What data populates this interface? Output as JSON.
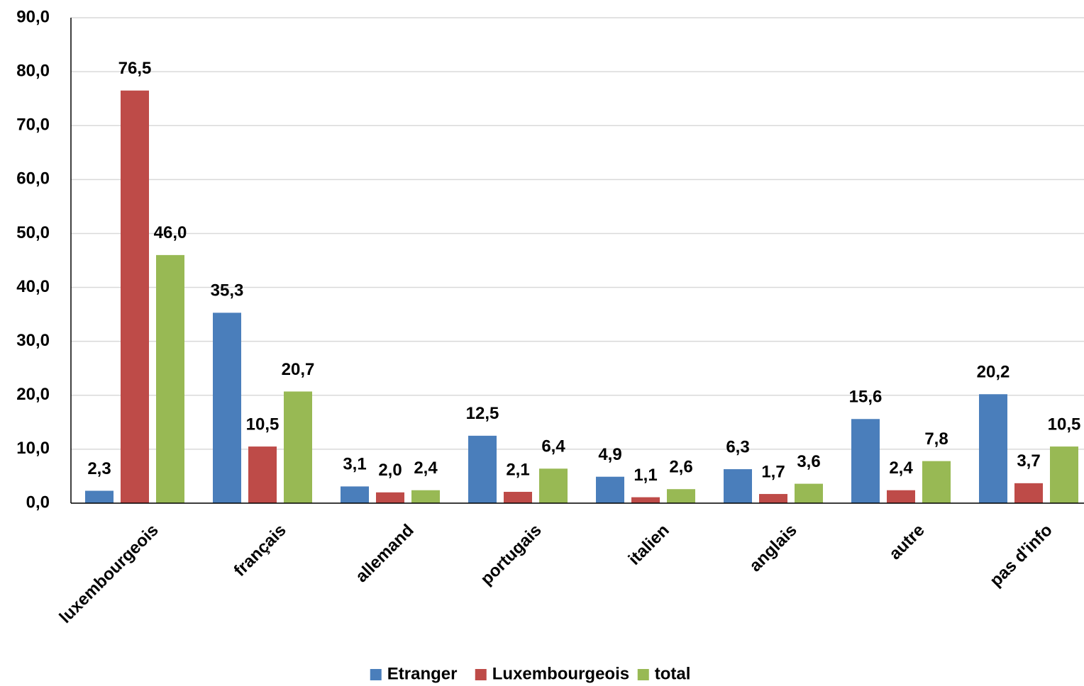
{
  "chart_data": {
    "type": "bar",
    "categories": [
      "luxembourgeois",
      "français",
      "allemand",
      "portugais",
      "italien",
      "anglais",
      "autre",
      "pas d'info"
    ],
    "series": [
      {
        "name": "Etranger",
        "color": "#4a7ebb",
        "values": [
          2.3,
          35.3,
          3.1,
          12.5,
          4.9,
          6.3,
          15.6,
          20.2
        ],
        "value_labels": [
          "2,3",
          "35,3",
          "3,1",
          "12,5",
          "4,9",
          "6,3",
          "15,6",
          "20,2"
        ]
      },
      {
        "name": "Luxembourgeois",
        "color": "#be4b48",
        "values": [
          76.5,
          10.5,
          2.0,
          2.1,
          1.1,
          1.7,
          2.4,
          3.7
        ],
        "value_labels": [
          "76,5",
          "10,5",
          "2,0",
          "2,1",
          "1,1",
          "1,7",
          "2,4",
          "3,7"
        ]
      },
      {
        "name": "total",
        "color": "#98b954",
        "values": [
          46.0,
          20.7,
          2.4,
          6.4,
          2.6,
          3.6,
          7.8,
          10.5
        ],
        "value_labels": [
          "46,0",
          "20,7",
          "2,4",
          "6,4",
          "2,6",
          "3,6",
          "7,8",
          "10,5"
        ]
      }
    ],
    "ylim": [
      0,
      90
    ],
    "yticks": [
      {
        "value": 0,
        "label": "0,0"
      },
      {
        "value": 10,
        "label": "10,0"
      },
      {
        "value": 20,
        "label": "20,0"
      },
      {
        "value": 30,
        "label": "30,0"
      },
      {
        "value": 40,
        "label": "40,0"
      },
      {
        "value": 50,
        "label": "50,0"
      },
      {
        "value": 60,
        "label": "60,0"
      },
      {
        "value": 70,
        "label": "70,0"
      },
      {
        "value": 80,
        "label": "80,0"
      },
      {
        "value": 90,
        "label": "90,0"
      }
    ],
    "grid": true,
    "legend": "bottom"
  }
}
